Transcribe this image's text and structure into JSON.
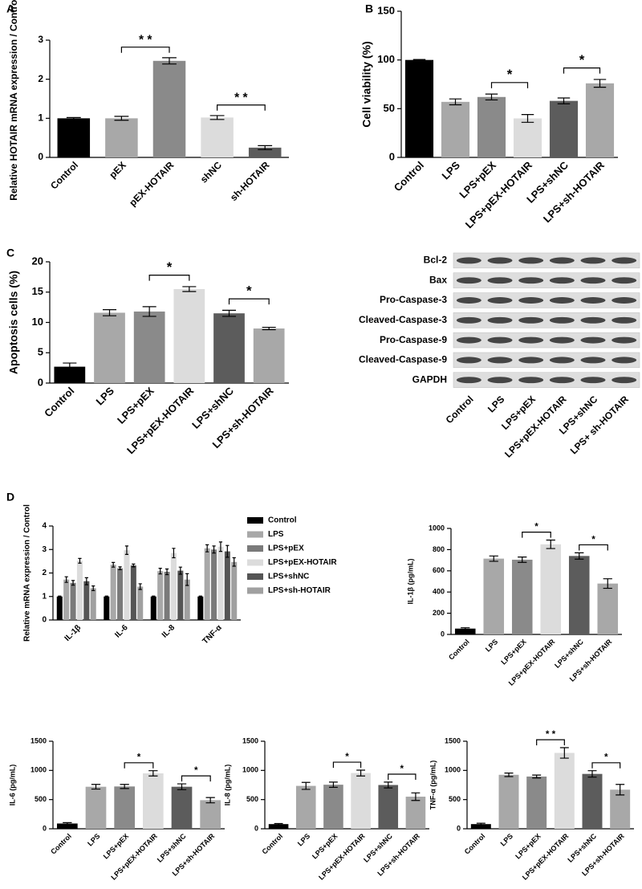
{
  "chart_data": [
    {
      "type": "bar",
      "panel": "A",
      "ylabel": "Relative  HOTAIR mRNA expression / Control",
      "categories": [
        "Control",
        "pEX",
        "pEX-HOTAIR",
        "shNC",
        "sh-HOTAIR"
      ],
      "values": [
        1,
        1,
        2.47,
        1.02,
        0.25
      ],
      "errors": [
        0.02,
        0.05,
        0.08,
        0.05,
        0.05
      ],
      "colors": [
        "#000000",
        "#a8a8a8",
        "#8a8a8a",
        "#dcdcdc",
        "#5c5c5c"
      ],
      "ylim": [
        0,
        3
      ],
      "yticks": [
        0,
        1,
        2,
        3
      ],
      "annotations": [
        {
          "label": "* *",
          "between": [
            "pEX",
            "pEX-HOTAIR"
          ]
        },
        {
          "label": "* *",
          "between": [
            "shNC",
            "sh-HOTAIR"
          ]
        }
      ]
    },
    {
      "type": "bar",
      "panel": "B",
      "ylabel": "Cell viability (%)",
      "categories": [
        "Control",
        "LPS",
        "LPS+pEX",
        "LPS+pEX-HOTAIR",
        "LPS+shNC",
        "LPS+sh-HOTAIR"
      ],
      "values": [
        100,
        57,
        62,
        40,
        58,
        76
      ],
      "errors": [
        0.5,
        3,
        3,
        4,
        3,
        4
      ],
      "colors": [
        "#000000",
        "#a8a8a8",
        "#8a8a8a",
        "#dcdcdc",
        "#5c5c5c",
        "#a8a8a8"
      ],
      "ylim": [
        0,
        150
      ],
      "yticks": [
        0,
        50,
        100,
        150
      ],
      "annotations": [
        {
          "label": "*",
          "between": [
            "LPS+pEX",
            "LPS+pEX-HOTAIR"
          ]
        },
        {
          "label": "*",
          "between": [
            "LPS+shNC",
            "LPS+sh-HOTAIR"
          ]
        }
      ]
    },
    {
      "type": "bar",
      "panel": "C",
      "ylabel": "Apoptosis cells (%)",
      "categories": [
        "Control",
        "LPS",
        "LPS+pEX",
        "LPS+pEX-HOTAIR",
        "LPS+shNC",
        "LPS+sh-HOTAIR"
      ],
      "values": [
        2.7,
        11.6,
        11.8,
        15.5,
        11.5,
        9
      ],
      "errors": [
        0.6,
        0.5,
        0.8,
        0.4,
        0.5,
        0.2
      ],
      "colors": [
        "#000000",
        "#a8a8a8",
        "#8a8a8a",
        "#dcdcdc",
        "#5c5c5c",
        "#a8a8a8"
      ],
      "ylim": [
        0,
        20
      ],
      "yticks": [
        0,
        5,
        10,
        15,
        20
      ],
      "annotations": [
        {
          "label": "*",
          "between": [
            "LPS+pEX",
            "LPS+pEX-HOTAIR"
          ]
        },
        {
          "label": "*",
          "between": [
            "LPS+shNC",
            "LPS+sh-HOTAIR"
          ]
        }
      ]
    },
    {
      "type": "blot",
      "proteins": [
        "Bcl-2",
        "Bax",
        "Pro-Caspase-3",
        "Cleaved-Caspase-3",
        "Pro-Caspase-9",
        "Cleaved-Caspase-9",
        "GAPDH"
      ],
      "lanes": [
        "Control",
        "LPS",
        "LPS+pEX",
        "LPS+pEX-HOTAIR",
        "LPS+shNC",
        "LPS+ sh-HOTAIR"
      ]
    },
    {
      "type": "grouped_bar",
      "panel": "D",
      "ylabel": "Relative mRNA expression / Control",
      "categories": [
        "IL-1β",
        "IL-6",
        "IL-8",
        "TNF-α"
      ],
      "series": [
        {
          "name": "Control",
          "color": "#000000",
          "values": [
            1,
            1,
            1,
            1
          ],
          "errors": [
            0.02,
            0.02,
            0.02,
            0.02
          ]
        },
        {
          "name": "LPS",
          "color": "#a8a8a8",
          "values": [
            1.72,
            2.35,
            2.08,
            3.05
          ],
          "errors": [
            0.12,
            0.1,
            0.12,
            0.15
          ]
        },
        {
          "name": "LPS+pEX",
          "color": "#7a7a7a",
          "values": [
            1.58,
            2.2,
            2.05,
            3.0
          ],
          "errors": [
            0.1,
            0.06,
            0.12,
            0.15
          ]
        },
        {
          "name": "LPS+pEX-HOTAIR",
          "color": "#dcdcdc",
          "values": [
            2.52,
            2.97,
            2.85,
            3.12
          ],
          "errors": [
            0.1,
            0.18,
            0.2,
            0.2
          ]
        },
        {
          "name": "LPS+shNC",
          "color": "#555555",
          "values": [
            1.65,
            2.32,
            2.1,
            2.92
          ],
          "errors": [
            0.15,
            0.06,
            0.15,
            0.25
          ]
        },
        {
          "name": "LPS+sh-HOTAIR",
          "color": "#a0a0a0",
          "values": [
            1.35,
            1.42,
            1.72,
            2.47
          ],
          "errors": [
            0.1,
            0.12,
            0.25,
            0.18
          ]
        }
      ],
      "ylim": [
        0,
        4
      ],
      "yticks": [
        0,
        1,
        2,
        3,
        4
      ]
    },
    {
      "type": "bar",
      "ylabel": "IL-1β  (pg/mL)",
      "categories": [
        "Control",
        "LPS",
        "LPS+pEX",
        "LPS+pEX-HOTAIR",
        "LPS+shNC",
        "LPS+sh-HOTAIR"
      ],
      "values": [
        55,
        715,
        705,
        850,
        740,
        480
      ],
      "errors": [
        8,
        25,
        25,
        40,
        30,
        45
      ],
      "colors": [
        "#000000",
        "#a8a8a8",
        "#8a8a8a",
        "#dcdcdc",
        "#5c5c5c",
        "#a8a8a8"
      ],
      "ylim": [
        0,
        1000
      ],
      "yticks": [
        0,
        200,
        400,
        600,
        800,
        1000
      ],
      "annotations": [
        {
          "label": "*",
          "between": [
            "LPS+pEX",
            "LPS+pEX-HOTAIR"
          ]
        },
        {
          "label": "*",
          "between": [
            "LPS+shNC",
            "LPS+sh-HOTAIR"
          ]
        }
      ]
    },
    {
      "type": "bar",
      "ylabel": "IL-6  (pg/mL)",
      "categories": [
        "Control",
        "LPS",
        "LPS+pEX",
        "LPS+pEX-HOTAIR",
        "LPS+shNC",
        "LPS+sh-HOTAIR"
      ],
      "values": [
        90,
        720,
        725,
        950,
        720,
        490
      ],
      "errors": [
        15,
        40,
        35,
        45,
        50,
        45
      ],
      "colors": [
        "#000000",
        "#a8a8a8",
        "#8a8a8a",
        "#dcdcdc",
        "#5c5c5c",
        "#a8a8a8"
      ],
      "ylim": [
        0,
        1500
      ],
      "yticks": [
        0,
        500,
        1000,
        1500
      ],
      "annotations": [
        {
          "label": "*",
          "between": [
            "LPS+pEX",
            "LPS+pEX-HOTAIR"
          ]
        },
        {
          "label": "*",
          "between": [
            "LPS+shNC",
            "LPS+sh-HOTAIR"
          ]
        }
      ]
    },
    {
      "type": "bar",
      "ylabel": "IL-8  (pg/mL)",
      "categories": [
        "Control",
        "LPS",
        "LPS+pEX",
        "LPS+pEX-HOTAIR",
        "LPS+shNC",
        "LPS+sh-HOTAIR"
      ],
      "values": [
        80,
        735,
        755,
        955,
        750,
        550
      ],
      "errors": [
        10,
        60,
        45,
        50,
        50,
        65
      ],
      "colors": [
        "#000000",
        "#a8a8a8",
        "#8a8a8a",
        "#dcdcdc",
        "#5c5c5c",
        "#a8a8a8"
      ],
      "ylim": [
        0,
        1500
      ],
      "yticks": [
        0,
        500,
        1000,
        1500
      ],
      "annotations": [
        {
          "label": "*",
          "between": [
            "LPS+pEX",
            "LPS+pEX-HOTAIR"
          ]
        },
        {
          "label": "*",
          "between": [
            "LPS+shNC",
            "LPS+sh-HOTAIR"
          ]
        }
      ]
    },
    {
      "type": "bar",
      "ylabel": "TNF-α  (pg/mL)",
      "categories": [
        "Control",
        "LPS",
        "LPS+pEX",
        "LPS+pEX-HOTAIR",
        "LPS+shNC",
        "LPS+sh-HOTAIR"
      ],
      "values": [
        80,
        925,
        895,
        1300,
        940,
        670
      ],
      "errors": [
        15,
        30,
        25,
        90,
        55,
        90
      ],
      "colors": [
        "#000000",
        "#a8a8a8",
        "#8a8a8a",
        "#dcdcdc",
        "#5c5c5c",
        "#a8a8a8"
      ],
      "ylim": [
        0,
        1500
      ],
      "yticks": [
        0,
        500,
        1000,
        1500
      ],
      "annotations": [
        {
          "label": "* *",
          "between": [
            "LPS+pEX",
            "LPS+pEX-HOTAIR"
          ]
        },
        {
          "label": "*",
          "between": [
            "LPS+shNC",
            "LPS+sh-HOTAIR"
          ]
        }
      ]
    }
  ]
}
